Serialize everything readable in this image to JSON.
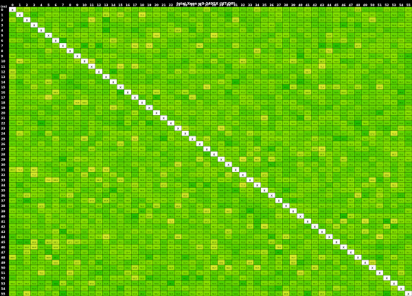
{
  "chart_data": {
    "type": "heatmap",
    "title": "Intel Xeon w9-3495X (HT:Off)",
    "unit_label": "(ns)",
    "x_labels": [
      "0",
      "1",
      "2",
      "3",
      "4",
      "5",
      "6",
      "7",
      "8",
      "9",
      "10",
      "11",
      "12",
      "13",
      "14",
      "15",
      "16",
      "17",
      "18",
      "19",
      "20",
      "21",
      "22",
      "23",
      "24",
      "25",
      "26",
      "27",
      "28",
      "29",
      "30",
      "31",
      "32",
      "33",
      "34",
      "35",
      "36",
      "37",
      "38",
      "39",
      "40",
      "41",
      "42",
      "43",
      "44",
      "45",
      "46",
      "47",
      "48",
      "49",
      "50",
      "51",
      "52",
      "53",
      "54",
      "55"
    ],
    "y_labels": [
      "0",
      "1",
      "2",
      "3",
      "4",
      "5",
      "6",
      "7",
      "8",
      "9",
      "10",
      "11",
      "12",
      "13",
      "14",
      "15",
      "16",
      "17",
      "18",
      "19",
      "20",
      "21",
      "22",
      "23",
      "24",
      "25",
      "26",
      "27",
      "28",
      "29",
      "30",
      "31",
      "32",
      "33",
      "34",
      "35",
      "36",
      "37",
      "38",
      "39",
      "40",
      "41",
      "42",
      "43",
      "44",
      "45",
      "46",
      "47",
      "48",
      "49",
      "50",
      "51",
      "52",
      "53",
      "54",
      "55"
    ],
    "diagonal_marker": "x",
    "value_range": [
      44.0,
      76.0
    ],
    "typical_value": 55.0,
    "colors": {
      "background": "#000000",
      "label_text": "#ffffff",
      "low": "#22c200",
      "mid": "#8ee400",
      "high": "#f5ee3a",
      "diagonal_cell": "#ffffff"
    },
    "legend": "none",
    "grid": true
  }
}
